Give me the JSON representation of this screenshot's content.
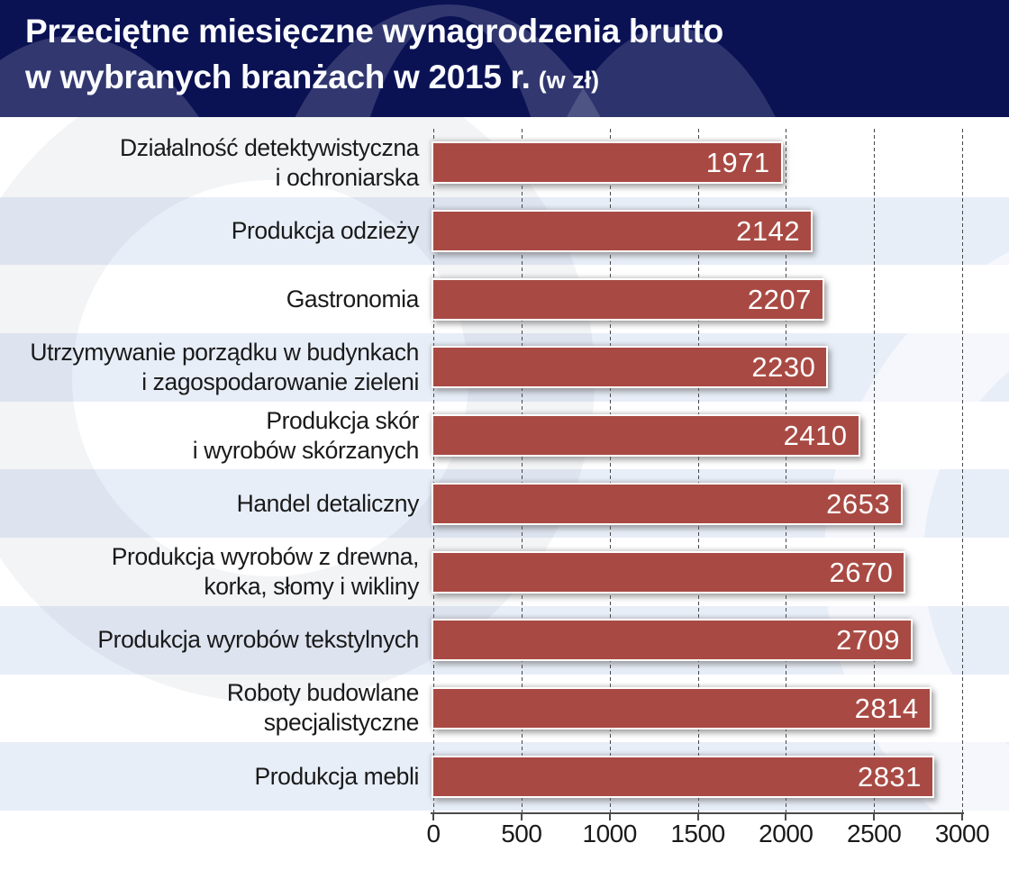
{
  "header": {
    "title_line1": "Przeciętne miesięczne wynagrodzenia brutto",
    "title_line2": "w wybranych branżach w 2015 r.",
    "unit_note": "(w zł)"
  },
  "chart_data": {
    "type": "bar",
    "orientation": "horizontal",
    "title": "Przeciętne miesięczne wynagrodzenia brutto w wybranych branżach w 2015 r. (w zł)",
    "categories": [
      "Działalność detektywistyczna\ni ochroniarska",
      "Produkcja odzieży",
      "Gastronomia",
      "Utrzymywanie porządku w budynkach\ni zagospodarowanie zieleni",
      "Produkcja skór\ni wyrobów skórzanych",
      "Handel detaliczny",
      "Produkcja wyrobów z drewna,\nkorka, słomy i wikliny",
      "Produkcja wyrobów tekstylnych",
      "Roboty budowlane\nspecjalistyczne",
      "Produkcja mebli"
    ],
    "values": [
      1971,
      2142,
      2207,
      2230,
      2410,
      2653,
      2670,
      2709,
      2814,
      2831
    ],
    "xlim": [
      0,
      3000
    ],
    "x_ticks": [
      0,
      500,
      1000,
      1500,
      2000,
      2500,
      3000
    ],
    "grid": "vertical-dashed",
    "value_labels": "inside-right",
    "legend": "none",
    "row_striping": "alternating white / light blue"
  },
  "colors": {
    "header_bg": "#0b1254",
    "header_watermark": "rgba(255,255,255,0.16)",
    "title_color": "#fafbfe",
    "bar_color": "#a84a43",
    "bar_border": "#ffffff",
    "row_alt_color": "#e8eef8",
    "row_base_color": "#ffffff",
    "gridline_color": "#474747",
    "axis_color": "#4a4a4a",
    "text_dark": "#1a1a1a",
    "value_label_color": "#ffffff",
    "body_watermark": "rgba(38,52,88,0.055)",
    "body_watermark_light": "rgba(255,255,255,0.55)"
  }
}
